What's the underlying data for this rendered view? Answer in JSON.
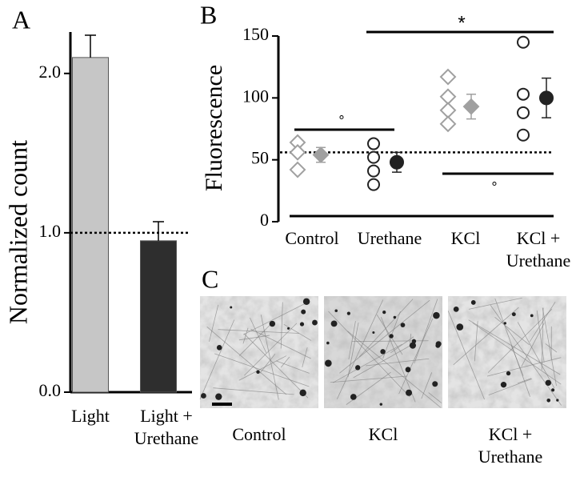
{
  "chart_data": [
    {
      "type": "bar",
      "panel_label": "A",
      "ylabel": "Normalized count",
      "categories": [
        "Light",
        "Light + Urethane"
      ],
      "values": [
        2.1,
        0.95
      ],
      "errors": [
        0.14,
        0.12
      ],
      "colors": [
        "#c6c6c6",
        "#2e2e2e"
      ],
      "ylim": [
        0,
        2.26
      ],
      "yticks": [
        {
          "value": 0,
          "label": "0.0"
        },
        {
          "value": 1,
          "label": "1.0"
        },
        {
          "value": 2,
          "label": "2.0"
        }
      ],
      "reference_line": 1.0
    },
    {
      "type": "dot",
      "panel_label": "B",
      "ylabel": "Fluorescence",
      "categories": [
        "Control",
        "Urethane",
        "KCl",
        "KCl + Urethane"
      ],
      "groups": [
        {
          "points": [
            64,
            56,
            42
          ],
          "mean": 54,
          "error": 6,
          "marker": "diamond",
          "color": "#a0a0a0"
        },
        {
          "points": [
            63,
            52,
            41,
            30
          ],
          "mean": 48,
          "error": 8,
          "marker": "circle",
          "color": "#222222"
        },
        {
          "points": [
            117,
            101,
            90,
            79
          ],
          "mean": 93,
          "error": 10,
          "marker": "diamond",
          "color": "#a0a0a0"
        },
        {
          "points": [
            145,
            103,
            88,
            70
          ],
          "mean": 100,
          "error": 16,
          "marker": "circle",
          "color": "#222222"
        }
      ],
      "ylim": [
        0,
        150
      ],
      "yticks": [
        0,
        50,
        100,
        150
      ],
      "reference_line": 56,
      "annotations": [
        "*",
        "°",
        "°"
      ]
    }
  ],
  "panel_c": {
    "panel_label": "C",
    "labels": [
      "Control",
      "KCl",
      "KCl + Urethane"
    ]
  }
}
